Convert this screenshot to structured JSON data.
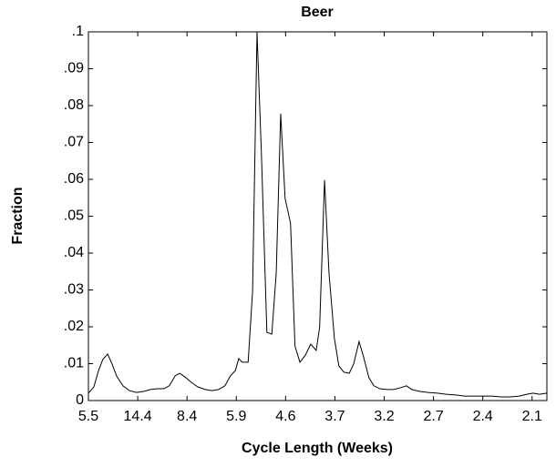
{
  "chart_data": {
    "type": "line",
    "title": "Beer",
    "x_label": "Cycle Length (Weeks)",
    "y_label": "Fraction",
    "x": [
      0,
      1.1,
      2.0,
      2.9,
      3.9,
      4.8,
      5.7,
      7.0,
      8.3,
      9.8,
      11.3,
      12.6,
      13.9,
      15.3,
      16.4,
      17.6,
      18.5,
      19.6,
      20.9,
      22.2,
      23.7,
      25.1,
      26.4,
      27.7,
      28.8,
      29.8,
      30.5,
      31.2,
      32.4,
      33.3,
      34.2,
      35.1,
      36.2,
      37.2,
      38.1,
      39.0,
      39.9,
      41.0,
      41.9,
      42.9,
      44.0,
      45.1,
      46.2,
      46.9,
      47.9,
      48.8,
      49.9,
      50.8,
      51.8,
      52.9,
      53.8,
      54.9,
      55.8,
      56.9,
      57.9,
      59.1,
      60.6,
      61.9,
      63.4,
      64.5,
      65.6,
      67.1,
      68.9,
      70.8,
      72.6,
      74.5,
      76.3,
      78.2,
      80.0,
      81.9,
      83.7,
      85.6,
      87.4,
      88.9,
      90.2,
      91.5,
      93.0
    ],
    "series": [
      {
        "name": "Beer",
        "color": "#000000",
        "values": [
          0.002,
          0.0037,
          0.0079,
          0.0111,
          0.0126,
          0.0099,
          0.0067,
          0.004,
          0.0027,
          0.0022,
          0.0025,
          0.003,
          0.0032,
          0.0032,
          0.004,
          0.0067,
          0.0074,
          0.0064,
          0.0049,
          0.0037,
          0.003,
          0.0027,
          0.003,
          0.004,
          0.0067,
          0.0081,
          0.0114,
          0.0104,
          0.0104,
          0.0296,
          0.1,
          0.0667,
          0.0185,
          0.018,
          0.0346,
          0.0778,
          0.0548,
          0.0481,
          0.0148,
          0.0104,
          0.0123,
          0.0153,
          0.0136,
          0.0198,
          0.0598,
          0.0346,
          0.0168,
          0.0094,
          0.0077,
          0.0074,
          0.0099,
          0.016,
          0.0119,
          0.0062,
          0.004,
          0.0032,
          0.003,
          0.003,
          0.0035,
          0.004,
          0.003,
          0.0025,
          0.0022,
          0.002,
          0.0017,
          0.0015,
          0.0012,
          0.0012,
          0.0012,
          0.0012,
          0.001,
          0.001,
          0.0012,
          0.0017,
          0.002,
          0.0017,
          0.002
        ]
      }
    ],
    "xlim": [
      0,
      93
    ],
    "xticks": [
      {
        "value": 0,
        "label": "5.5"
      },
      {
        "value": 10,
        "label": "14.4"
      },
      {
        "value": 20,
        "label": "8.4"
      },
      {
        "value": 30,
        "label": "5.9"
      },
      {
        "value": 40,
        "label": "4.6"
      },
      {
        "value": 50,
        "label": "3.7"
      },
      {
        "value": 60,
        "label": "3.2"
      },
      {
        "value": 70,
        "label": "2.7"
      },
      {
        "value": 80,
        "label": "2.4"
      },
      {
        "value": 90,
        "label": "2.1"
      }
    ],
    "ylim": [
      0,
      0.1
    ],
    "yticks": [
      0,
      {
        "value": 0.01,
        "label": ".01"
      },
      {
        "value": 0.02,
        "label": ".02"
      },
      {
        "value": 0.03,
        "label": ".03"
      },
      {
        "value": 0.04,
        "label": ".04"
      },
      {
        "value": 0.05,
        "label": ".05"
      },
      {
        "value": 0.06,
        "label": ".06"
      },
      {
        "value": 0.07,
        "label": ".07"
      },
      {
        "value": 0.08,
        "label": ".08"
      },
      {
        "value": 0.09,
        "label": ".09"
      },
      {
        "value": 0.1,
        "label": ".1"
      }
    ],
    "grid": false
  }
}
